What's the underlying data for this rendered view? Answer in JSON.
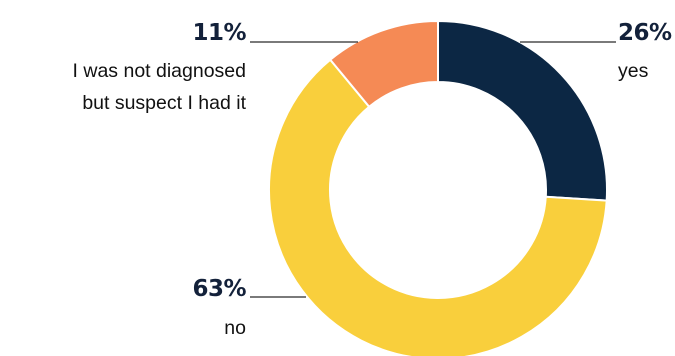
{
  "chart_data": {
    "type": "pie",
    "donut": true,
    "title": "",
    "categories": [
      "yes",
      "no",
      "I was not diagnosed but suspect I had it"
    ],
    "values": [
      26,
      63,
      11
    ],
    "labels": [
      {
        "pct": "26%",
        "lines": [
          "yes"
        ]
      },
      {
        "pct": "63%",
        "lines": [
          "no"
        ]
      },
      {
        "pct": "11%",
        "lines": [
          "I was not diagnosed",
          "but suspect I had it"
        ]
      }
    ],
    "colors": [
      "#0c2744",
      "#f9cf3c",
      "#f58a55"
    ],
    "legend": "none"
  }
}
